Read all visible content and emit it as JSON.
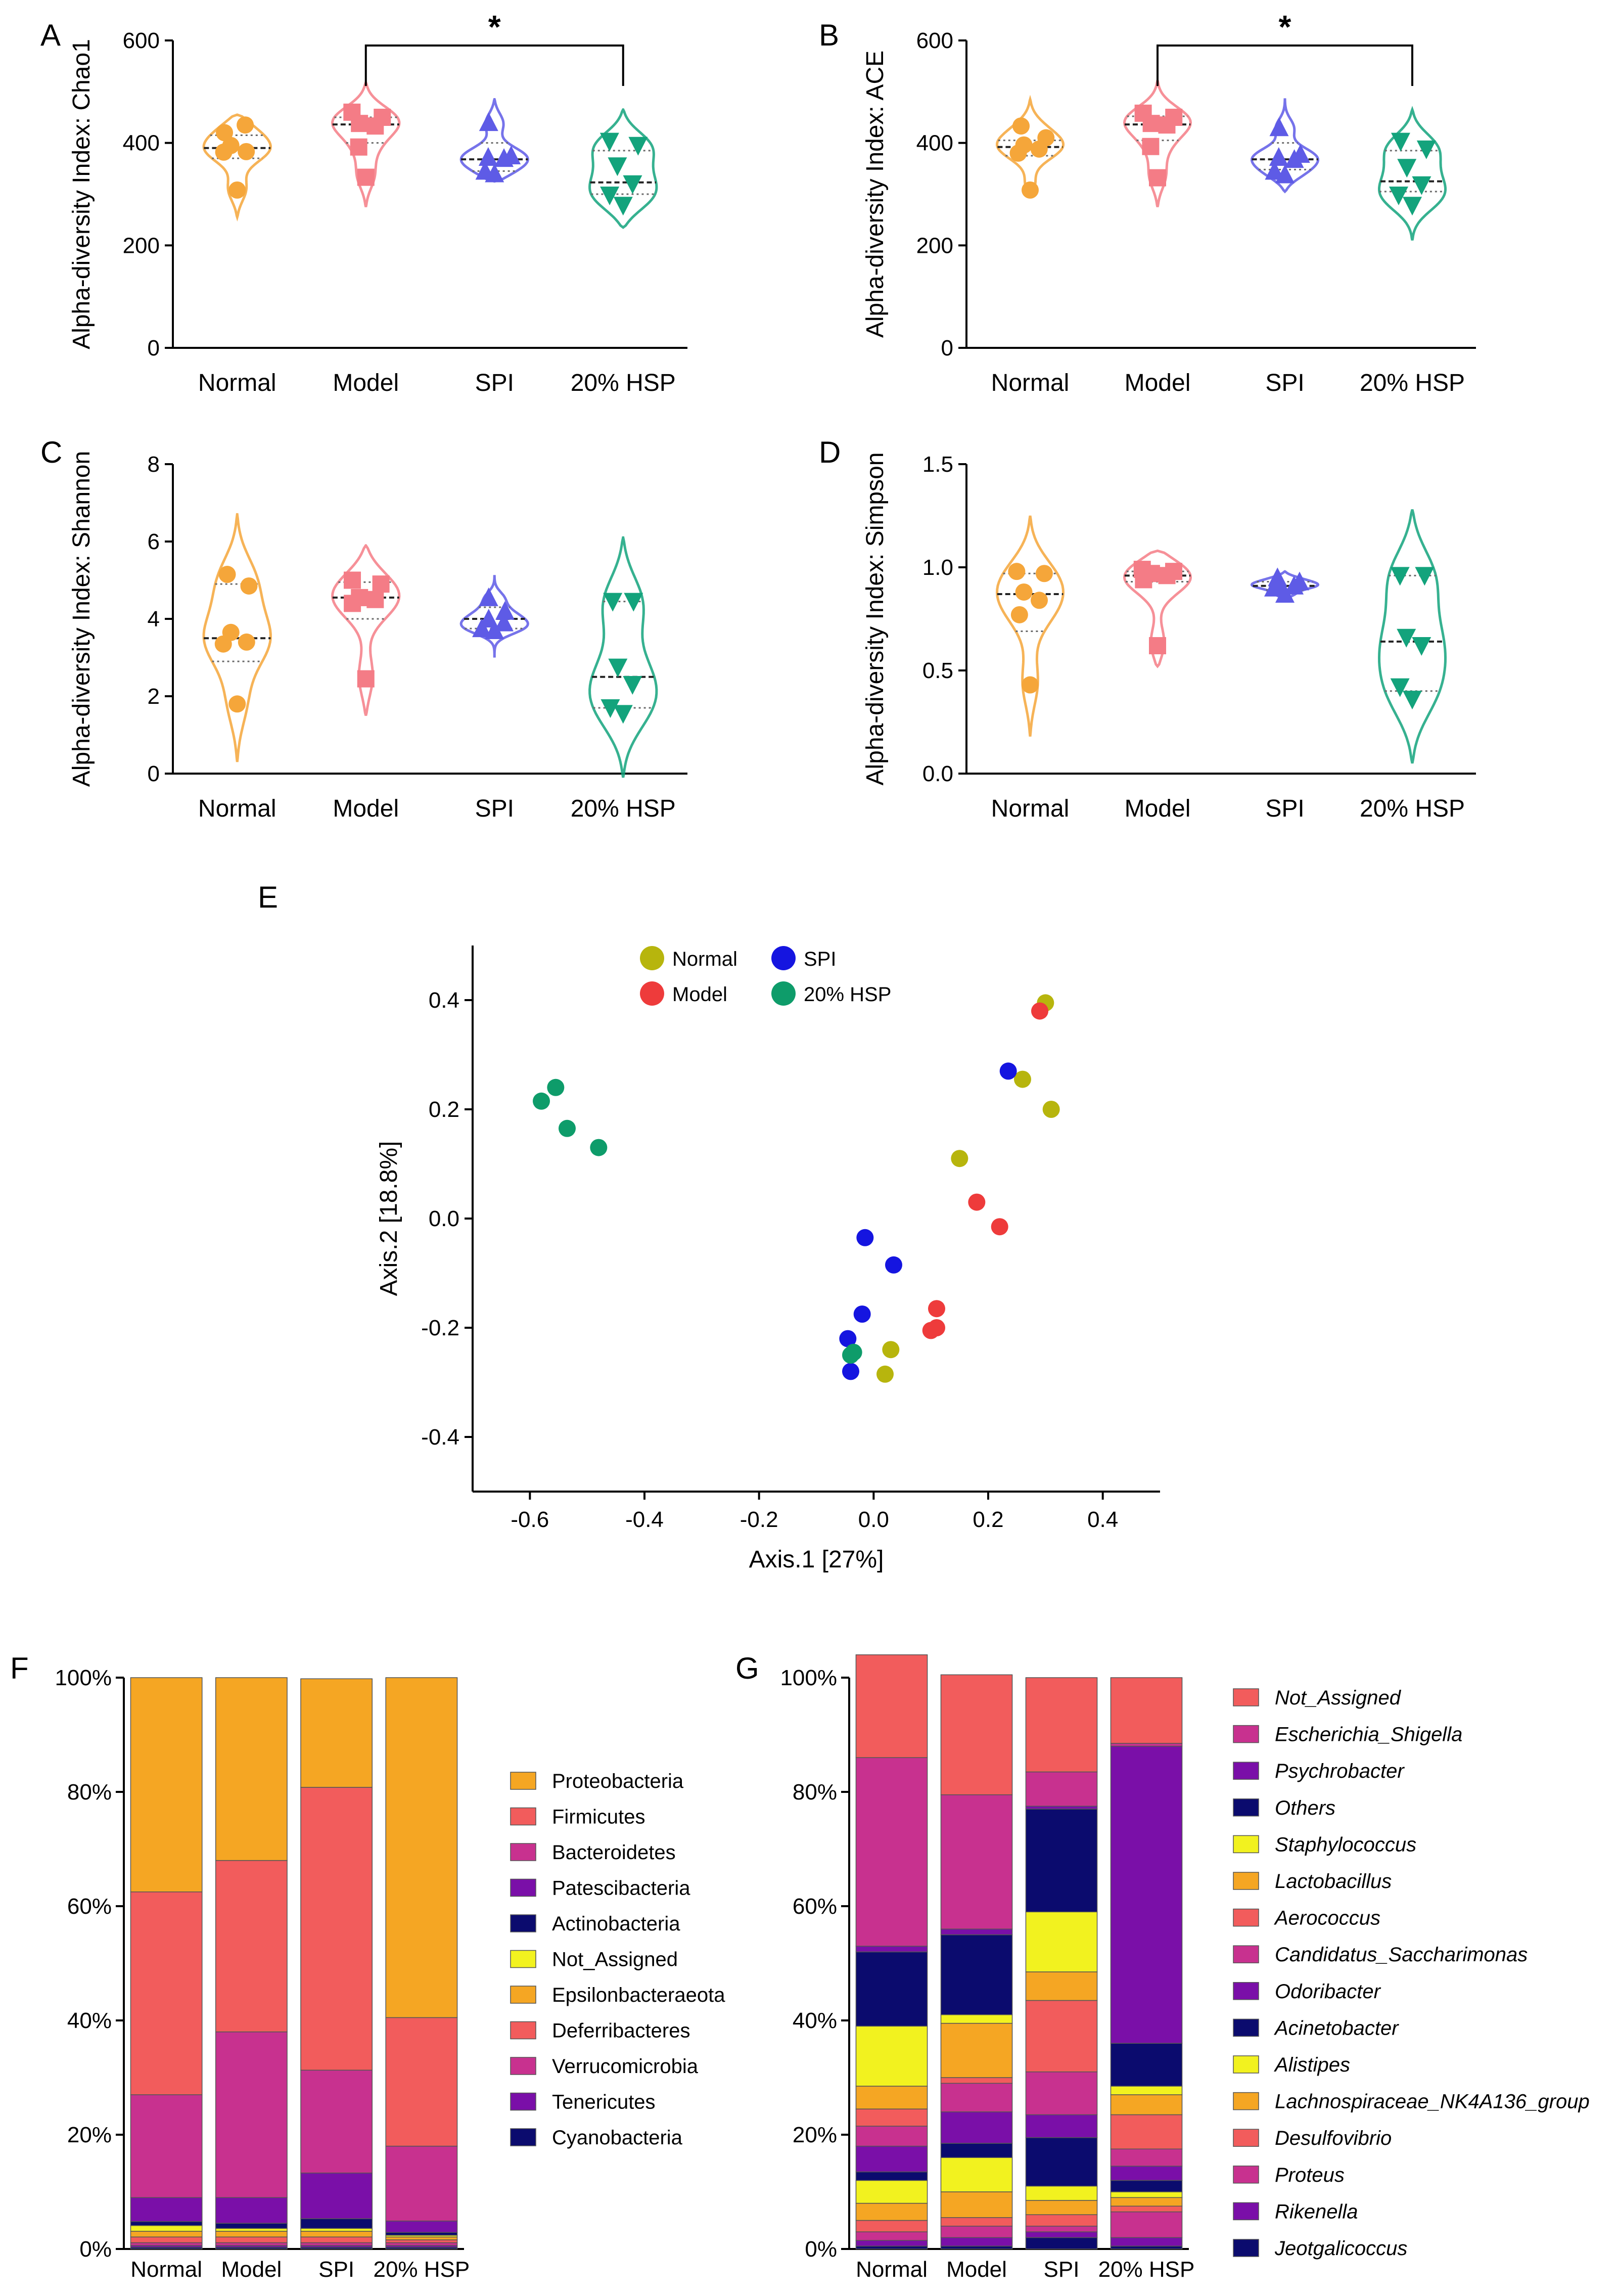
{
  "colors": {
    "normal": "#F5A63A",
    "model": "#F47C86",
    "spi": "#5E5BE6",
    "hsp": "#13A37C",
    "pcoa_normal": "#B7B50D",
    "pcoa_model": "#EE3B3B",
    "pcoa_spi": "#1515E0",
    "pcoa_hsp": "#0E9C6A"
  },
  "chart_data": [
    {
      "panel": "A",
      "type": "violin",
      "ylabel": "Alpha-diversity Index: Chao1",
      "ylim": [
        0,
        600
      ],
      "yticks": [
        "0",
        "200",
        "400",
        "600"
      ],
      "categories": [
        "Normal",
        "Model",
        "SPI",
        "20% HSP"
      ],
      "significance": {
        "from": "Model",
        "to": "20% HSP",
        "label": "*"
      },
      "series": [
        {
          "name": "Normal",
          "marker": "circle",
          "values": [
            420,
            435,
            395,
            383,
            382,
            308
          ],
          "median": 390,
          "q1": 370,
          "q3": 415,
          "min": 255,
          "max": 455
        },
        {
          "name": "Model",
          "marker": "square",
          "values": [
            460,
            450,
            438,
            433,
            392,
            333
          ],
          "median": 436,
          "q1": 400,
          "q3": 450,
          "min": 275,
          "max": 518
        },
        {
          "name": "SPI",
          "marker": "triangle-up",
          "values": [
            440,
            375,
            372,
            370,
            345,
            340
          ],
          "median": 368,
          "q1": 345,
          "q3": 400,
          "min": 325,
          "max": 485
        },
        {
          "name": "20% HSP",
          "marker": "triangle-down",
          "values": [
            403,
            395,
            355,
            320,
            298,
            278
          ],
          "median": 323,
          "q1": 300,
          "q3": 385,
          "min": 235,
          "max": 465
        }
      ]
    },
    {
      "panel": "B",
      "type": "violin",
      "ylabel": "Alpha-diversity Index: ACE",
      "ylim": [
        0,
        600
      ],
      "yticks": [
        "0",
        "200",
        "400",
        "600"
      ],
      "categories": [
        "Normal",
        "Model",
        "SPI",
        "20% HSP"
      ],
      "significance": {
        "from": "Model",
        "to": "20% HSP",
        "label": "*"
      },
      "series": [
        {
          "name": "Normal",
          "marker": "circle",
          "values": [
            433,
            410,
            396,
            388,
            380,
            308
          ],
          "median": 392,
          "q1": 375,
          "q3": 405,
          "min": 305,
          "max": 485
        },
        {
          "name": "Model",
          "marker": "square",
          "values": [
            458,
            450,
            438,
            435,
            393,
            332
          ],
          "median": 436,
          "q1": 405,
          "q3": 452,
          "min": 275,
          "max": 522
        },
        {
          "name": "SPI",
          "marker": "triangle-up",
          "values": [
            430,
            378,
            372,
            368,
            345,
            338
          ],
          "median": 368,
          "q1": 348,
          "q3": 400,
          "min": 305,
          "max": 487
        },
        {
          "name": "20% HSP",
          "marker": "triangle-down",
          "values": [
            403,
            388,
            352,
            318,
            298,
            278
          ],
          "median": 325,
          "q1": 305,
          "q3": 385,
          "min": 210,
          "max": 465
        }
      ]
    },
    {
      "panel": "C",
      "type": "violin",
      "ylabel": "Alpha-diversity Index: Shannon",
      "ylim": [
        0,
        8
      ],
      "yticks": [
        "0",
        "2",
        "4",
        "6",
        "8"
      ],
      "categories": [
        "Normal",
        "Model",
        "SPI",
        "20% HSP"
      ],
      "series": [
        {
          "name": "Normal",
          "marker": "circle",
          "values": [
            5.15,
            4.85,
            3.65,
            3.4,
            3.35,
            1.8
          ],
          "median": 3.5,
          "q1": 2.9,
          "q3": 4.9,
          "min": 0.3,
          "max": 6.7
        },
        {
          "name": "Model",
          "marker": "square",
          "values": [
            5.0,
            4.9,
            4.55,
            4.5,
            4.4,
            2.45
          ],
          "median": 4.55,
          "q1": 4.0,
          "q3": 4.95,
          "min": 1.5,
          "max": 5.9
        },
        {
          "name": "SPI",
          "marker": "triangle-up",
          "values": [
            4.55,
            4.2,
            4.0,
            3.9,
            3.75,
            3.7
          ],
          "median": 4.0,
          "q1": 3.75,
          "q3": 4.3,
          "min": 3.0,
          "max": 5.1
        },
        {
          "name": "20% HSP",
          "marker": "triangle-down",
          "values": [
            4.45,
            4.45,
            2.75,
            2.3,
            1.7,
            1.55
          ],
          "median": 2.5,
          "q1": 1.7,
          "q3": 4.45,
          "min": -0.1,
          "max": 6.1
        }
      ]
    },
    {
      "panel": "D",
      "type": "violin",
      "ylabel": "Alpha-diversity Index: Simpson",
      "ylim": [
        0.0,
        1.5
      ],
      "yticks": [
        "0.0",
        "0.5",
        "1.0",
        "1.5"
      ],
      "categories": [
        "Normal",
        "Model",
        "SPI",
        "20% HSP"
      ],
      "series": [
        {
          "name": "Normal",
          "marker": "circle",
          "values": [
            0.98,
            0.97,
            0.88,
            0.84,
            0.77,
            0.43
          ],
          "median": 0.87,
          "q1": 0.69,
          "q3": 0.97,
          "min": 0.18,
          "max": 1.25
        },
        {
          "name": "Model",
          "marker": "square",
          "values": [
            0.99,
            0.98,
            0.97,
            0.96,
            0.94,
            0.62
          ],
          "median": 0.96,
          "q1": 0.93,
          "q3": 0.98,
          "min": 0.52,
          "max": 1.08
        },
        {
          "name": "SPI",
          "marker": "triangle-up",
          "values": [
            0.95,
            0.93,
            0.92,
            0.91,
            0.9,
            0.87
          ],
          "median": 0.91,
          "q1": 0.89,
          "q3": 0.93,
          "min": 0.84,
          "max": 0.98
        },
        {
          "name": "20% HSP",
          "marker": "triangle-down",
          "values": [
            0.96,
            0.96,
            0.66,
            0.62,
            0.42,
            0.36
          ],
          "median": 0.64,
          "q1": 0.4,
          "q3": 0.96,
          "min": 0.05,
          "max": 1.28
        }
      ]
    },
    {
      "panel": "E",
      "type": "scatter",
      "xlabel": "Axis.1 [27%]",
      "ylabel": "Axis.2 [18.8%]",
      "xlim": [
        -0.7,
        0.5
      ],
      "ylim": [
        -0.5,
        0.5
      ],
      "xticks": [
        "-0.6",
        "-0.4",
        "-0.2",
        "0.0",
        "0.2",
        "0.4"
      ],
      "yticks": [
        "-0.4",
        "-0.2",
        "0.0",
        "0.2",
        "0.4"
      ],
      "legend": [
        "Normal",
        "SPI",
        "Model",
        "20% HSP"
      ],
      "series": [
        {
          "name": "Normal",
          "points": [
            [
              0.3,
              0.395
            ],
            [
              0.26,
              0.255
            ],
            [
              0.31,
              0.2
            ],
            [
              0.15,
              0.11
            ],
            [
              0.03,
              -0.24
            ],
            [
              0.02,
              -0.285
            ]
          ]
        },
        {
          "name": "Model",
          "points": [
            [
              0.29,
              0.38
            ],
            [
              0.18,
              0.03
            ],
            [
              0.22,
              -0.015
            ],
            [
              0.11,
              -0.165
            ],
            [
              0.11,
              -0.2
            ],
            [
              0.1,
              -0.205
            ]
          ]
        },
        {
          "name": "SPI",
          "points": [
            [
              0.235,
              0.27
            ],
            [
              -0.015,
              -0.035
            ],
            [
              0.035,
              -0.085
            ],
            [
              -0.02,
              -0.175
            ],
            [
              -0.045,
              -0.22
            ],
            [
              -0.04,
              -0.28
            ]
          ]
        },
        {
          "name": "20% HSP",
          "points": [
            [
              -0.58,
              0.215
            ],
            [
              -0.555,
              0.24
            ],
            [
              -0.535,
              0.165
            ],
            [
              -0.48,
              0.13
            ],
            [
              -0.035,
              -0.245
            ],
            [
              -0.04,
              -0.25
            ]
          ]
        }
      ]
    },
    {
      "panel": "F",
      "type": "stacked-bar",
      "ylim": [
        0,
        100
      ],
      "yticks": [
        "0%",
        "20%",
        "40%",
        "60%",
        "80%",
        "100%"
      ],
      "categories": [
        "Normal",
        "Model",
        "SPI",
        "20% HSP"
      ],
      "series": [
        {
          "name": "Cyanobacteria",
          "color": "#0B0B6E",
          "values": [
            0.3,
            0.3,
            0.3,
            0.3
          ]
        },
        {
          "name": "Tenericutes",
          "color": "#7A0FA8",
          "values": [
            0.3,
            0.3,
            0.3,
            0.3
          ]
        },
        {
          "name": "Verrucomicrobia",
          "color": "#C8318F",
          "values": [
            0.5,
            0.5,
            0.5,
            0.5
          ]
        },
        {
          "name": "Deferribacteres",
          "color": "#F25C5C",
          "values": [
            1.0,
            1.0,
            1.0,
            0.5
          ]
        },
        {
          "name": "Epsilonbacteraeota",
          "color": "#F5A623",
          "values": [
            1.0,
            1.0,
            1.0,
            0.5
          ]
        },
        {
          "name": "Not_Assigned",
          "color": "#F2F21F",
          "values": [
            1.0,
            0.5,
            0.5,
            0.3
          ]
        },
        {
          "name": "Actinobacteria",
          "color": "#0B0B6E",
          "values": [
            0.7,
            0.9,
            1.7,
            0.5
          ]
        },
        {
          "name": "Patescibacteria",
          "color": "#7A0FA8",
          "values": [
            4.2,
            4.5,
            8.0,
            2.0
          ]
        },
        {
          "name": "Bacteroidetes",
          "color": "#C8318F",
          "values": [
            18.0,
            29.0,
            18.0,
            13.1
          ]
        },
        {
          "name": "Firmicutes",
          "color": "#F25C5C",
          "values": [
            35.5,
            30.0,
            49.5,
            22.5
          ]
        },
        {
          "name": "Proteobacteria",
          "color": "#F5A623",
          "values": [
            37.5,
            32.0,
            19.0,
            59.5
          ]
        }
      ],
      "legend": [
        "Proteobacteria",
        "Firmicutes",
        "Bacteroidetes",
        "Patescibacteria",
        "Actinobacteria",
        "Not_Assigned",
        "Epsilonbacteraeota",
        "Deferribacteres",
        "Verrucomicrobia",
        "Tenericutes",
        "Cyanobacteria"
      ]
    },
    {
      "panel": "G",
      "type": "stacked-bar",
      "ylim": [
        0,
        100
      ],
      "yticks": [
        "0%",
        "20%",
        "40%",
        "60%",
        "80%",
        "100%"
      ],
      "categories": [
        "Normal",
        "Model",
        "SPI",
        "20% HSP"
      ],
      "series": [
        {
          "name": "Jeotgalicoccus",
          "color": "#0B0B6E",
          "values": [
            0.5,
            0.5,
            2.0,
            0.5
          ]
        },
        {
          "name": "Rikenella",
          "color": "#7A0FA8",
          "values": [
            1.0,
            1.5,
            1.0,
            1.5
          ]
        },
        {
          "name": "Proteus",
          "color": "#C8318F",
          "values": [
            1.5,
            2.0,
            1.0,
            4.5
          ]
        },
        {
          "name": "Desulfovibrio",
          "color": "#F25C5C",
          "values": [
            2.0,
            1.5,
            2.0,
            1.0
          ]
        },
        {
          "name": "Lachnospiraceae_NK4A136_group",
          "color": "#F5A623",
          "values": [
            3.0,
            4.5,
            2.5,
            1.5
          ]
        },
        {
          "name": "Alistipes",
          "color": "#F2F21F",
          "values": [
            4.0,
            6.0,
            2.5,
            1.0
          ]
        },
        {
          "name": "Acinetobacter",
          "color": "#0B0B6E",
          "values": [
            1.5,
            2.5,
            8.5,
            2.0
          ]
        },
        {
          "name": "Odoribacter",
          "color": "#7A0FA8",
          "values": [
            4.5,
            5.5,
            4.0,
            2.5
          ]
        },
        {
          "name": "Candidatus_Saccharimonas",
          "color": "#C8318F",
          "values": [
            3.5,
            5.0,
            7.5,
            3.0
          ]
        },
        {
          "name": "Aerococcus",
          "color": "#F25C5C",
          "values": [
            3.0,
            1.0,
            12.5,
            6.0
          ]
        },
        {
          "name": "Lactobacillus",
          "color": "#F5A623",
          "values": [
            4.0,
            9.5,
            5.0,
            3.5
          ]
        },
        {
          "name": "Staphylococcus",
          "color": "#F2F21F",
          "values": [
            10.5,
            1.5,
            10.5,
            1.5
          ]
        },
        {
          "name": "Others",
          "color": "#0B0B6E",
          "values": [
            13.0,
            14.0,
            18.0,
            7.5
          ]
        },
        {
          "name": "Psychrobacter",
          "color": "#7A0FA8",
          "values": [
            1.0,
            1.0,
            0.5,
            52.0
          ]
        },
        {
          "name": "Escherichia_Shigella",
          "color": "#C8318F",
          "values": [
            33.0,
            23.5,
            6.0,
            0.5
          ]
        },
        {
          "name": "Not_Assigned",
          "color": "#F25C5C",
          "values": [
            18.0,
            21.0,
            16.5,
            11.5
          ]
        }
      ],
      "legend": [
        "Not_Assigned",
        "Escherichia_Shigella",
        "Psychrobacter",
        "Others",
        "Staphylococcus",
        "Lactobacillus",
        "Aerococcus",
        "Candidatus_Saccharimonas",
        "Odoribacter",
        "Acinetobacter",
        "Alistipes",
        "Lachnospiraceae_NK4A136_group",
        "Desulfovibrio",
        "Proteus",
        "Rikenella",
        "Jeotgalicoccus"
      ]
    }
  ]
}
